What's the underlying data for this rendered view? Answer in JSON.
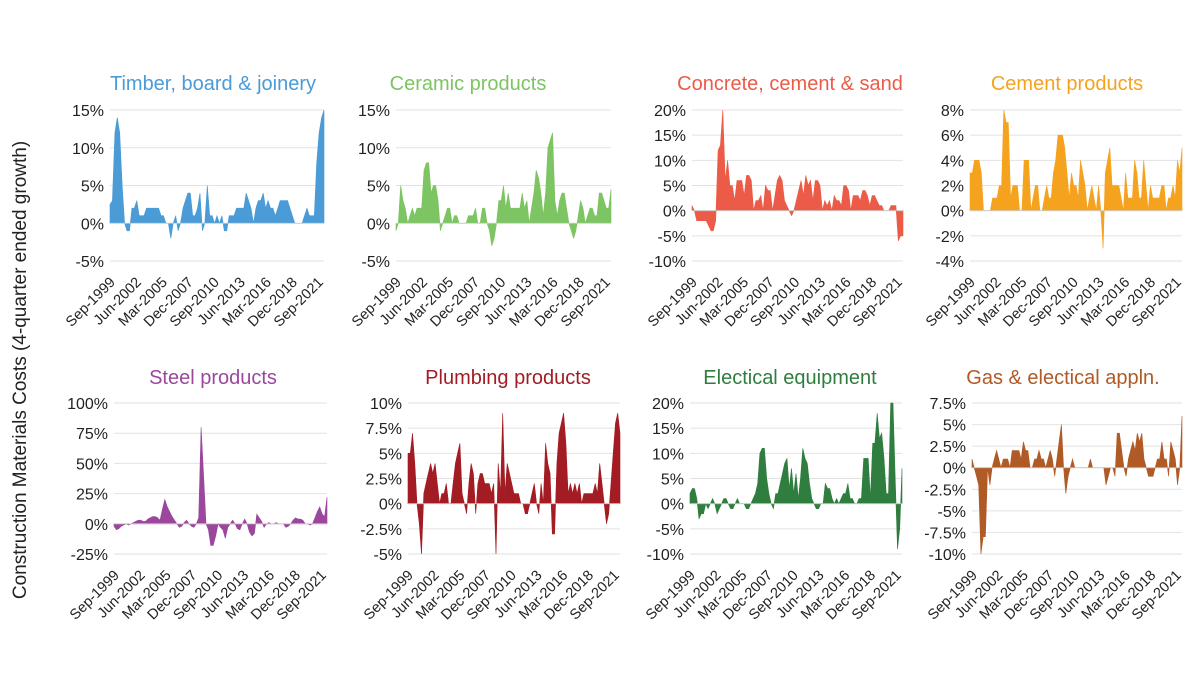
{
  "figure": {
    "ylabel": "Construction Materials Costs (4-quarter ended growth)"
  },
  "chart_data": [
    {
      "type": "area",
      "title": "Timber, board & joinery",
      "color": "#4a9bd6",
      "yticks": [
        "-5%",
        "0%",
        "5%",
        "10%",
        "15%"
      ],
      "ylim": [
        -5,
        15
      ],
      "x_start": "Sep-1999",
      "x_end": "Sep-2021",
      "frequency": "quarterly",
      "xtick_labels": [
        "Sep-1999",
        "Jun-2002",
        "Mar-2005",
        "Dec-2007",
        "Sep-2010",
        "Jun-2013",
        "Mar-2016",
        "Dec-2018",
        "Sep-2021"
      ],
      "values": [
        2.5,
        3,
        12,
        14,
        12,
        5,
        0,
        -1,
        -1,
        2,
        2,
        3,
        1,
        1,
        1,
        2,
        2,
        2,
        2,
        2,
        2,
        1,
        1,
        0,
        0,
        -2,
        0,
        1,
        -1,
        0,
        2,
        3,
        4,
        4,
        1,
        1,
        2,
        4,
        -1,
        0,
        5,
        1,
        1,
        0,
        1,
        0,
        1,
        -1,
        -1,
        1,
        1,
        1,
        2,
        2,
        2,
        2,
        4,
        3,
        2,
        0,
        2,
        3,
        3,
        4,
        2,
        3,
        2,
        2,
        1,
        2,
        3,
        3,
        3,
        3,
        2,
        1,
        0,
        0,
        0,
        0,
        1,
        2,
        1,
        1,
        1,
        8,
        12,
        14,
        15
      ],
      "grid": true
    },
    {
      "type": "area",
      "title": "Ceramic products",
      "color": "#7dc462",
      "yticks": [
        "-5%",
        "0%",
        "5%",
        "10%",
        "15%"
      ],
      "ylim": [
        -5,
        15
      ],
      "x_start": "Sep-1999",
      "x_end": "Sep-2021",
      "frequency": "quarterly",
      "xtick_labels": [
        "Sep-1999",
        "Jun-2002",
        "Mar-2005",
        "Dec-2007",
        "Sep-2010",
        "Jun-2013",
        "Mar-2016",
        "Dec-2018",
        "Sep-2021"
      ],
      "values": [
        -1,
        0,
        5,
        3,
        2,
        0,
        1,
        2,
        1,
        2,
        2,
        2,
        7,
        8,
        8,
        4,
        5,
        5,
        3,
        -1,
        0,
        1,
        2,
        2,
        0,
        1,
        1,
        0,
        0,
        0,
        0,
        1,
        1,
        1,
        2,
        0,
        0,
        2,
        2,
        0,
        -1,
        -3,
        -2,
        0,
        3,
        3,
        5,
        2,
        4,
        2,
        2,
        2,
        2,
        2,
        4,
        2,
        3,
        0,
        2,
        4,
        7,
        6,
        4,
        1,
        4,
        10,
        11,
        12,
        3,
        1,
        3,
        4,
        4,
        2,
        0,
        -1,
        -2,
        -1,
        1,
        3,
        2,
        0,
        1,
        2,
        2,
        1,
        1,
        4,
        4,
        3,
        2,
        2,
        4.5
      ],
      "grid": true
    },
    {
      "type": "area",
      "title": "Concrete, cement & sand",
      "color": "#ec5b47",
      "yticks": [
        "-10%",
        "-5%",
        "0%",
        "5%",
        "10%",
        "15%",
        "20%"
      ],
      "ylim": [
        -10,
        20
      ],
      "x_start": "Sep-1999",
      "x_end": "Sep-2021",
      "frequency": "quarterly",
      "xtick_labels": [
        "Sep-1999",
        "Jun-2002",
        "Mar-2005",
        "Dec-2007",
        "Sep-2010",
        "Jun-2013",
        "Mar-2016",
        "Dec-2018",
        "Sep-2021"
      ],
      "values": [
        1,
        0,
        -2,
        -2,
        -2,
        -2,
        -2,
        -3,
        -4,
        -4,
        -2,
        12,
        13,
        20,
        6,
        10,
        5,
        5,
        2,
        6,
        6,
        6,
        3,
        7,
        7,
        6,
        0,
        2,
        2,
        3,
        0,
        5,
        4,
        4,
        0,
        3,
        6,
        7,
        6,
        2,
        1,
        0,
        -1,
        0,
        2,
        4,
        6,
        3,
        7,
        5,
        6,
        2,
        6,
        6,
        5,
        0,
        2,
        1,
        2,
        0,
        3,
        2,
        2,
        1,
        5,
        5,
        4,
        0,
        3,
        3,
        3,
        2,
        4,
        4,
        3,
        1,
        3,
        3,
        2,
        1,
        1,
        0,
        0,
        0,
        1,
        1,
        1,
        -6,
        -5,
        -5
      ],
      "grid": true
    },
    {
      "type": "area",
      "title": "Cement products",
      "color": "#f5a21f",
      "yticks": [
        "-4%",
        "-2%",
        "0%",
        "2%",
        "4%",
        "6%",
        "8%"
      ],
      "ylim": [
        -4,
        8
      ],
      "x_start": "Sep-1999",
      "x_end": "Sep-2021",
      "frequency": "quarterly",
      "xtick_labels": [
        "Sep-1999",
        "Jun-2002",
        "Mar-2005",
        "Dec-2007",
        "Sep-2010",
        "Jun-2013",
        "Mar-2016",
        "Dec-2018",
        "Sep-2021"
      ],
      "values": [
        3,
        3,
        4,
        4,
        4,
        3,
        0,
        0,
        0,
        0,
        1,
        1,
        1,
        2,
        2,
        8,
        7,
        7,
        1,
        2,
        2,
        2,
        0,
        0,
        4,
        4,
        4,
        0,
        1,
        2,
        2,
        0,
        0,
        1,
        2,
        1,
        1,
        3,
        4,
        6,
        6,
        6,
        5,
        3,
        1,
        3,
        2,
        2,
        1,
        4,
        3,
        2,
        0,
        1,
        2,
        1,
        0,
        2,
        0,
        -3,
        3,
        4,
        5,
        2,
        2,
        2,
        2,
        1,
        0,
        3,
        1,
        1,
        1,
        4,
        3,
        1,
        1,
        4,
        2,
        0,
        2,
        1,
        1,
        1,
        1,
        2,
        2,
        0,
        1,
        1,
        2,
        1,
        4,
        3,
        5
      ],
      "grid": true
    },
    {
      "type": "area",
      "title": "Steel products",
      "color": "#9b479c",
      "yticks": [
        "-25%",
        "0%",
        "25%",
        "50%",
        "75%",
        "100%"
      ],
      "ylim": [
        -25,
        100
      ],
      "x_start": "Sep-1999",
      "x_end": "Sep-2021",
      "frequency": "quarterly",
      "xtick_labels": [
        "Sep-1999",
        "Jun-2002",
        "Mar-2005",
        "Dec-2007",
        "Sep-2010",
        "Jun-2013",
        "Mar-2016",
        "Dec-2018",
        "Sep-2021"
      ],
      "values": [
        -2,
        -5,
        -4,
        -2,
        -1,
        0,
        -1,
        0,
        1,
        2,
        3,
        3,
        2,
        2,
        4,
        5,
        6,
        6,
        5,
        3,
        12,
        20,
        14,
        10,
        6,
        3,
        0,
        -3,
        -2,
        1,
        3,
        0,
        -2,
        -3,
        0,
        5,
        80,
        40,
        0,
        -5,
        -18,
        -18,
        -10,
        0,
        -3,
        -5,
        -12,
        -3,
        0,
        3,
        0,
        -4,
        -5,
        0,
        4,
        0,
        -7,
        -10,
        -8,
        8,
        5,
        2,
        -3,
        0,
        1,
        0,
        0,
        1,
        0,
        0,
        0,
        -3,
        -2,
        0,
        3,
        5,
        4,
        4,
        3,
        0,
        0,
        -1,
        0,
        5,
        10,
        14,
        8,
        6,
        22
      ],
      "grid": true
    },
    {
      "type": "area",
      "title": "Plumbing products",
      "color": "#a31c24",
      "yticks": [
        "-5%",
        "-2.5%",
        "0%",
        "2.5%",
        "5%",
        "7.5%",
        "10%"
      ],
      "ylim": [
        -5,
        10
      ],
      "x_start": "Sep-1999",
      "x_end": "Sep-2021",
      "frequency": "quarterly",
      "xtick_labels": [
        "Sep-1999",
        "Jun-2002",
        "Mar-2005",
        "Dec-2007",
        "Sep-2010",
        "Jun-2013",
        "Mar-2016",
        "Dec-2018",
        "Sep-2021"
      ],
      "values": [
        5,
        5,
        7,
        4,
        0,
        -2,
        -5,
        1,
        2,
        3,
        4,
        3,
        4,
        2,
        0,
        1,
        1,
        2,
        0,
        0,
        2,
        4,
        5,
        6,
        1,
        0,
        -1,
        2,
        4,
        3,
        -1,
        2,
        3,
        3,
        2,
        2,
        2,
        1,
        2,
        -5,
        4,
        1,
        9,
        1,
        4,
        3,
        2,
        1,
        1,
        1,
        0,
        0,
        -1,
        -1,
        0,
        1,
        2,
        0,
        -1,
        2,
        0,
        6,
        4,
        3,
        -3,
        -3,
        4,
        7,
        8,
        9,
        6,
        1,
        2,
        1,
        2,
        1,
        2,
        0,
        1,
        1,
        1,
        1,
        1,
        2,
        1,
        4,
        2,
        0,
        -2,
        -1,
        2,
        5,
        8,
        9,
        7
      ],
      "grid": true
    },
    {
      "type": "area",
      "title": "Electical equipment",
      "color": "#2f7d3f",
      "yticks": [
        "-10%",
        "-5%",
        "0%",
        "5%",
        "10%",
        "15%",
        "20%"
      ],
      "ylim": [
        -10,
        20
      ],
      "x_start": "Sep-1999",
      "x_end": "Sep-2021",
      "frequency": "quarterly",
      "xtick_labels": [
        "Sep-1999",
        "Jun-2002",
        "Mar-2005",
        "Dec-2007",
        "Sep-2010",
        "Jun-2013",
        "Mar-2016",
        "Dec-2018",
        "Sep-2021"
      ],
      "values": [
        2,
        3,
        3,
        1,
        -3,
        -2,
        -2,
        0,
        -1,
        0,
        1,
        0,
        -2,
        -1,
        0,
        1,
        1,
        0,
        -1,
        -1,
        0,
        1,
        0,
        0,
        0,
        -1,
        -1,
        0,
        1,
        2,
        4,
        10,
        11,
        11,
        5,
        2,
        0,
        -1,
        2,
        2,
        4,
        6,
        8,
        9,
        3,
        7,
        2,
        6,
        1,
        5,
        11,
        9,
        8,
        4,
        1,
        0,
        -1,
        -1,
        0,
        0,
        4,
        3,
        3,
        1,
        0,
        1,
        0,
        1,
        2,
        2,
        4,
        1,
        1,
        0,
        0,
        1,
        1,
        9,
        9,
        9,
        1,
        12,
        12,
        18,
        13,
        14,
        9,
        2,
        2,
        20,
        20,
        5,
        -9,
        -5,
        7
      ],
      "grid": true
    },
    {
      "type": "area",
      "title": "Gas & electical appln.",
      "color": "#b05a26",
      "yticks": [
        "-10%",
        "-7.5%",
        "-5%",
        "-2.5%",
        "0%",
        "2.5%",
        "5%",
        "7.5%"
      ],
      "ylim": [
        -10,
        7.5
      ],
      "x_start": "Sep-1999",
      "x_end": "Sep-2021",
      "frequency": "quarterly",
      "xtick_labels": [
        "Sep-1999",
        "Jun-2002",
        "Mar-2005",
        "Dec-2007",
        "Sep-2010",
        "Jun-2013",
        "Mar-2016",
        "Dec-2018",
        "Sep-2021"
      ],
      "values": [
        1,
        0,
        -1,
        -2,
        -10,
        -8,
        -8,
        0,
        -2,
        0,
        1,
        2,
        1,
        0,
        1,
        1,
        1,
        0,
        2,
        2,
        2,
        2,
        1,
        3,
        2,
        2,
        0,
        0,
        1,
        1,
        2,
        1,
        1,
        0,
        1,
        2,
        1,
        -1,
        1,
        3,
        5,
        0,
        -3,
        -1,
        0,
        1,
        0,
        0,
        0,
        0,
        0,
        0,
        0,
        1,
        0,
        0,
        0,
        0,
        0,
        0,
        -2,
        -1,
        0,
        0,
        -1,
        4,
        4,
        2,
        0,
        -1,
        1,
        2,
        3,
        2,
        4,
        3,
        4,
        1,
        0,
        -1,
        -1,
        -1,
        0,
        1,
        1,
        3,
        1,
        1,
        -1,
        3,
        2,
        1,
        -2,
        0,
        6
      ],
      "grid": true
    }
  ]
}
